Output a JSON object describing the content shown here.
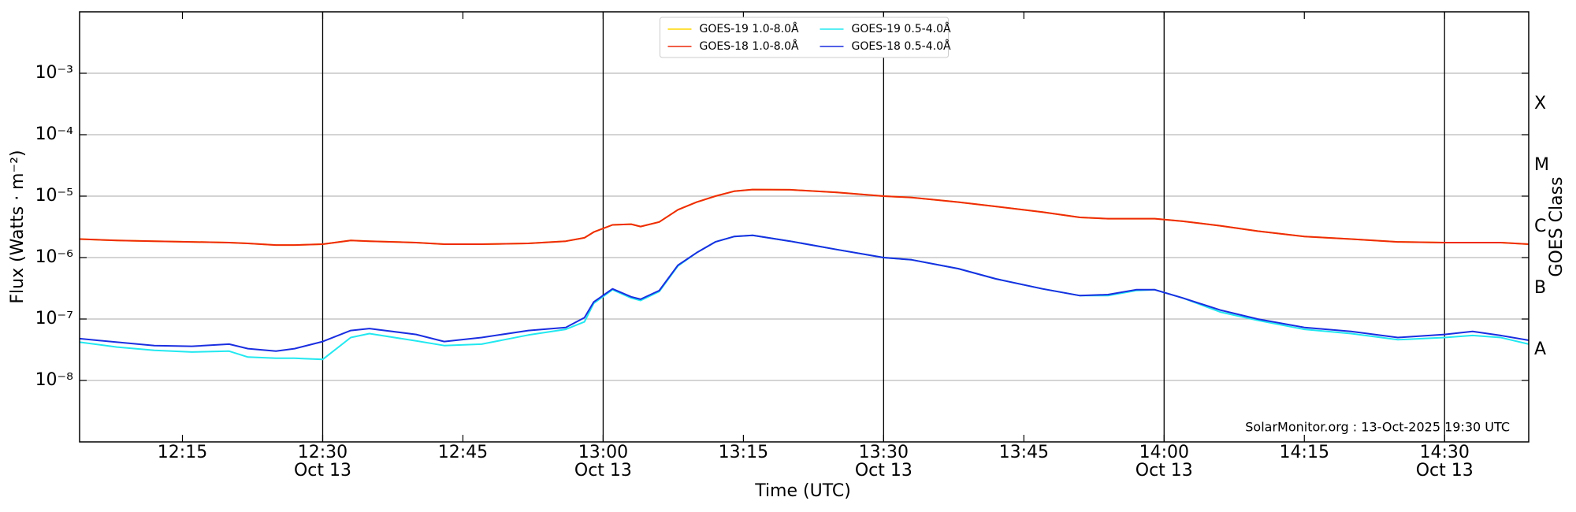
{
  "chart_data": {
    "type": "line",
    "xlabel": "Time (UTC)",
    "ylabel": "Flux (Watts · m⁻²)",
    "y2label": "GOES Class",
    "annotation": "SolarMonitor.org : 13-Oct-2025 19:30 UTC",
    "log_y": true,
    "grid": true,
    "legend": "upper center",
    "xlim": [
      "12:04",
      "14:39"
    ],
    "xticks": [
      "12:15",
      "12:30",
      "12:45",
      "13:00",
      "13:15",
      "13:30",
      "13:45",
      "14:00",
      "14:15",
      "14:30"
    ],
    "xtick_dates": [
      null,
      "Oct 13",
      null,
      "Oct 13",
      null,
      "Oct 13",
      null,
      "Oct 13",
      null,
      "Oct 13"
    ],
    "ylim": [
      1e-09,
      0.01
    ],
    "yticks": [
      {
        "value": 1e-08,
        "label": "10⁻⁸"
      },
      {
        "value": 1e-07,
        "label": "10⁻⁷"
      },
      {
        "value": 1e-06,
        "label": "10⁻⁶"
      },
      {
        "value": 1e-05,
        "label": "10⁻⁵"
      },
      {
        "value": 0.0001,
        "label": "10⁻⁴"
      },
      {
        "value": 0.001,
        "label": "10⁻³"
      }
    ],
    "classes": [
      {
        "value": 3.16e-08,
        "label": "A"
      },
      {
        "value": 3.16e-07,
        "label": "B"
      },
      {
        "value": 3.16e-06,
        "label": "C"
      },
      {
        "value": 3.16e-05,
        "label": "M"
      },
      {
        "value": 0.000316,
        "label": "X"
      }
    ],
    "x": [
      "12:04",
      "12:08",
      "12:12",
      "12:16",
      "12:20",
      "12:22",
      "12:25",
      "12:27",
      "12:30",
      "12:33",
      "12:35",
      "12:40",
      "12:43",
      "12:47",
      "12:52",
      "12:56",
      "12:58",
      "12:59",
      "13:01",
      "13:03",
      "13:04",
      "13:06",
      "13:08",
      "13:10",
      "13:12",
      "13:14",
      "13:16",
      "13:20",
      "13:25",
      "13:30",
      "13:33",
      "13:38",
      "13:42",
      "13:47",
      "13:51",
      "13:54",
      "13:57",
      "13:59",
      "14:02",
      "14:06",
      "14:10",
      "14:15",
      "14:20",
      "14:25",
      "14:30",
      "14:33",
      "14:36",
      "14:39"
    ],
    "series": [
      {
        "name": "GOES-19 1.0-8.0Å",
        "color": "#ffd700",
        "values": [
          2e-06,
          1.9e-06,
          1.85e-06,
          1.8e-06,
          1.75e-06,
          1.7e-06,
          1.6e-06,
          1.6e-06,
          1.65e-06,
          1.9e-06,
          1.85e-06,
          1.75e-06,
          1.65e-06,
          1.65e-06,
          1.7e-06,
          1.85e-06,
          2.1e-06,
          2.6e-06,
          3.4e-06,
          3.5e-06,
          3.2e-06,
          3.8e-06,
          6e-06,
          8e-06,
          1e-05,
          1.2e-05,
          1.28e-05,
          1.27e-05,
          1.15e-05,
          1e-05,
          9.5e-06,
          8e-06,
          6.8e-06,
          5.5e-06,
          4.5e-06,
          4.3e-06,
          4.3e-06,
          4.3e-06,
          3.9e-06,
          3.3e-06,
          2.7e-06,
          2.2e-06,
          2e-06,
          1.8e-06,
          1.75e-06,
          1.75e-06,
          1.75e-06,
          1.65e-06
        ]
      },
      {
        "name": "GOES-18 1.0-8.0Å",
        "color": "#ee2a0a",
        "values": [
          2e-06,
          1.9e-06,
          1.85e-06,
          1.8e-06,
          1.75e-06,
          1.7e-06,
          1.6e-06,
          1.6e-06,
          1.65e-06,
          1.9e-06,
          1.85e-06,
          1.75e-06,
          1.65e-06,
          1.65e-06,
          1.7e-06,
          1.85e-06,
          2.1e-06,
          2.6e-06,
          3.4e-06,
          3.5e-06,
          3.2e-06,
          3.8e-06,
          6e-06,
          8e-06,
          1e-05,
          1.2e-05,
          1.28e-05,
          1.27e-05,
          1.15e-05,
          1e-05,
          9.5e-06,
          8e-06,
          6.8e-06,
          5.5e-06,
          4.5e-06,
          4.3e-06,
          4.3e-06,
          4.3e-06,
          3.9e-06,
          3.3e-06,
          2.7e-06,
          2.2e-06,
          2e-06,
          1.8e-06,
          1.75e-06,
          1.75e-06,
          1.75e-06,
          1.65e-06
        ]
      },
      {
        "name": "GOES-19 0.5-4.0Å",
        "color": "#22e8f0",
        "values": [
          4.2e-08,
          3.5e-08,
          3.1e-08,
          2.9e-08,
          3e-08,
          2.4e-08,
          2.3e-08,
          2.3e-08,
          2.2e-08,
          5e-08,
          5.8e-08,
          4.4e-08,
          3.7e-08,
          3.9e-08,
          5.5e-08,
          6.8e-08,
          9e-08,
          1.8e-07,
          3e-07,
          2.2e-07,
          2e-07,
          2.8e-07,
          7.3e-07,
          1.2e-06,
          1.8e-06,
          2.2e-06,
          2.3e-06,
          1.85e-06,
          1.35e-06,
          1e-06,
          9.2e-07,
          6.6e-07,
          4.5e-07,
          3.1e-07,
          2.4e-07,
          2.4e-07,
          2.9e-07,
          3e-07,
          2.2e-07,
          1.3e-07,
          9.5e-08,
          6.8e-08,
          5.8e-08,
          4.6e-08,
          5e-08,
          5.4e-08,
          5e-08,
          3.9e-08
        ]
      },
      {
        "name": "GOES-18 0.5-4.0Å",
        "color": "#1a2ee0",
        "values": [
          4.8e-08,
          4.2e-08,
          3.7e-08,
          3.6e-08,
          3.9e-08,
          3.3e-08,
          3e-08,
          3.3e-08,
          4.3e-08,
          6.5e-08,
          7e-08,
          5.6e-08,
          4.3e-08,
          5e-08,
          6.5e-08,
          7.3e-08,
          1.05e-07,
          1.9e-07,
          3.1e-07,
          2.3e-07,
          2.1e-07,
          2.9e-07,
          7.5e-07,
          1.2e-06,
          1.8e-06,
          2.2e-06,
          2.3e-06,
          1.85e-06,
          1.35e-06,
          1e-06,
          9.2e-07,
          6.6e-07,
          4.5e-07,
          3.1e-07,
          2.4e-07,
          2.5e-07,
          3e-07,
          3e-07,
          2.2e-07,
          1.4e-07,
          1e-07,
          7.3e-08,
          6.3e-08,
          5e-08,
          5.6e-08,
          6.3e-08,
          5.4e-08,
          4.5e-08
        ]
      }
    ]
  }
}
